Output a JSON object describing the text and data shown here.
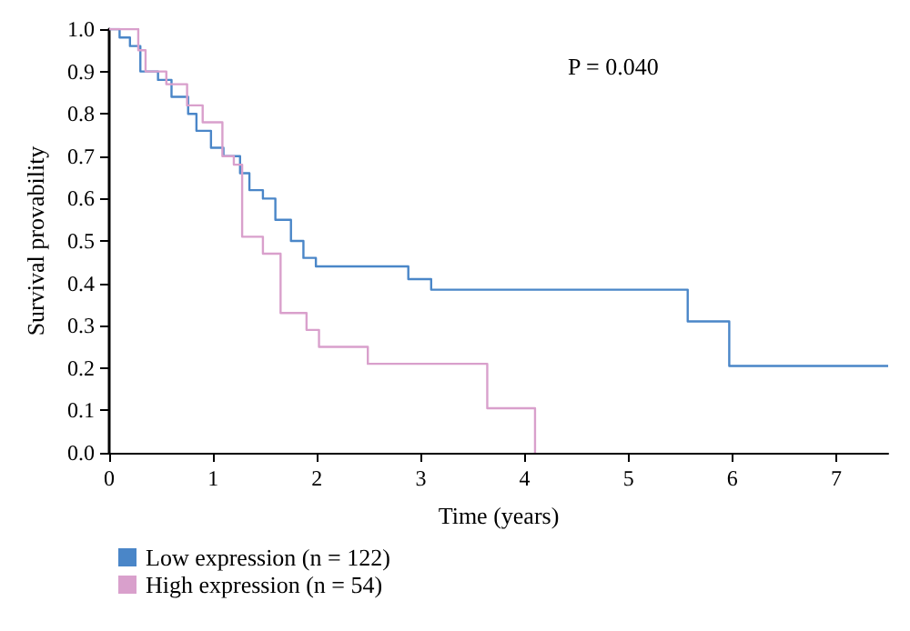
{
  "chart_data": {
    "type": "step",
    "xlabel": "Time (years)",
    "ylabel": "Survival provability",
    "annotations": [
      "P = 0.040"
    ],
    "xlim": [
      0,
      7.5
    ],
    "xticks": [
      0,
      1,
      2,
      3,
      4,
      5,
      6,
      7
    ],
    "ylim": [
      0,
      1
    ],
    "yticks": [
      {
        "value": 0,
        "label": "0.0"
      },
      0.1,
      0.2,
      0.3,
      0.4,
      0.5,
      0.6,
      0.7,
      0.8,
      0.9,
      {
        "value": 1,
        "label": "1.0"
      }
    ],
    "grid": false,
    "legend": "bottom left",
    "line_style": "solid",
    "series": [
      {
        "name": "Low expression (n = 122)",
        "color": "#4a86c8",
        "x": [
          0,
          0.1,
          0.2,
          0.3,
          0.47,
          0.6,
          0.76,
          0.84,
          0.98,
          1.1,
          1.26,
          1.35,
          1.48,
          1.6,
          1.75,
          1.87,
          1.99,
          2.88,
          3.1,
          5.57,
          5.97,
          7.5
        ],
        "values": [
          1.0,
          0.98,
          0.96,
          0.9,
          0.88,
          0.84,
          0.8,
          0.76,
          0.72,
          0.7,
          0.66,
          0.62,
          0.6,
          0.55,
          0.5,
          0.46,
          0.44,
          0.41,
          0.385,
          0.31,
          0.205,
          0.205
        ]
      },
      {
        "name": "High expression (n = 54)",
        "color": "#d9a0cc",
        "x": [
          0,
          0.28,
          0.35,
          0.55,
          0.75,
          0.9,
          1.09,
          1.2,
          1.28,
          1.48,
          1.65,
          1.9,
          2.02,
          2.49,
          3.64,
          4.1
        ],
        "values": [
          1.0,
          0.95,
          0.9,
          0.87,
          0.82,
          0.78,
          0.7,
          0.68,
          0.51,
          0.47,
          0.33,
          0.29,
          0.25,
          0.21,
          0.105,
          0.0
        ]
      }
    ]
  }
}
